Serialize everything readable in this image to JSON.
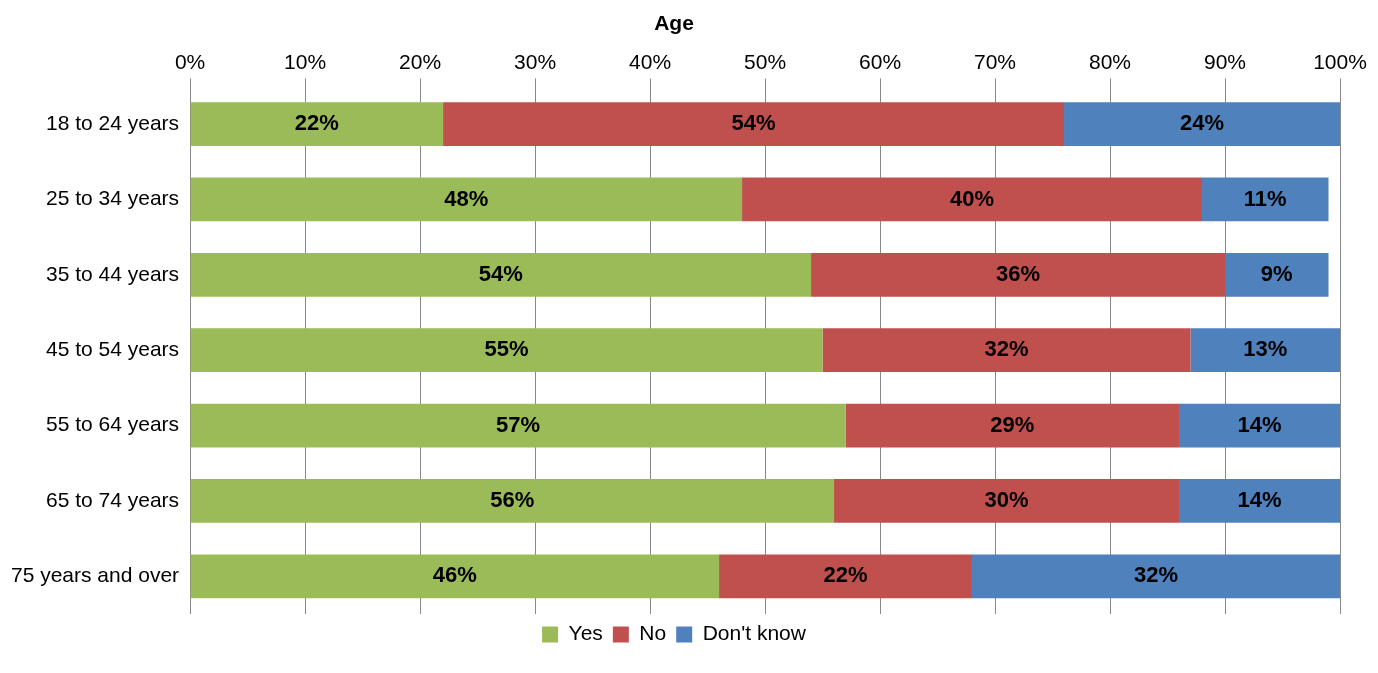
{
  "chart_data": {
    "type": "bar",
    "title": "Age",
    "orientation": "horizontal",
    "stacked": true,
    "categories": [
      "18 to 24 years",
      "25 to 34 years",
      "35 to 44 years",
      "45 to 54 years",
      "55 to 64 years",
      "65 to 74 years",
      "75 years and over"
    ],
    "series": [
      {
        "name": "Yes",
        "color": "#9bbb59",
        "values": [
          22,
          48,
          54,
          55,
          57,
          56,
          46
        ],
        "value_labels": [
          "22%",
          "48%",
          "54%",
          "55%",
          "57%",
          "56%",
          "46%"
        ]
      },
      {
        "name": "No",
        "color": "#c0504d",
        "values": [
          54,
          40,
          36,
          32,
          29,
          30,
          22
        ],
        "value_labels": [
          "54%",
          "40%",
          "36%",
          "32%",
          "29%",
          "30%",
          "22%"
        ]
      },
      {
        "name": "Don't know",
        "color": "#4f81bd",
        "values": [
          24,
          11,
          9,
          13,
          14,
          14,
          32
        ],
        "value_labels": [
          "24%",
          "11%",
          "9%",
          "13%",
          "14%",
          "14%",
          "32%"
        ]
      }
    ],
    "xlim": [
      0,
      100
    ],
    "xticks": [
      {
        "value": 0,
        "label": "0%"
      },
      {
        "value": 10,
        "label": "10%"
      },
      {
        "value": 20,
        "label": "20%"
      },
      {
        "value": 30,
        "label": "30%"
      },
      {
        "value": 40,
        "label": "40%"
      },
      {
        "value": 50,
        "label": "50%"
      },
      {
        "value": 60,
        "label": "60%"
      },
      {
        "value": 70,
        "label": "70%"
      },
      {
        "value": 80,
        "label": "80%"
      },
      {
        "value": 90,
        "label": "90%"
      },
      {
        "value": 100,
        "label": "100%"
      }
    ],
    "grid": "x",
    "legend": "bottom"
  }
}
